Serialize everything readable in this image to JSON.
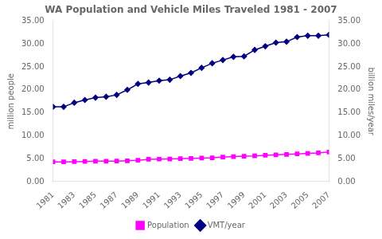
{
  "chart_data": {
    "type": "line",
    "title": "WA Population and Vehicle Miles Traveled 1981 - 2007",
    "x": [
      1981,
      1982,
      1983,
      1984,
      1985,
      1986,
      1987,
      1988,
      1989,
      1990,
      1991,
      1992,
      1993,
      1994,
      1995,
      1996,
      1997,
      1998,
      1999,
      2000,
      2001,
      2002,
      2003,
      2004,
      2005,
      2006,
      2007
    ],
    "series": [
      {
        "name": "Population",
        "color": "#FF00FF",
        "marker": "square",
        "values": [
          4.3,
          4.3,
          4.35,
          4.4,
          4.45,
          4.46,
          4.48,
          4.55,
          4.65,
          4.87,
          4.9,
          4.94,
          5.0,
          5.06,
          5.13,
          5.2,
          5.35,
          5.45,
          5.55,
          5.6,
          5.73,
          5.84,
          5.94,
          6.05,
          6.15,
          6.25,
          6.45
        ]
      },
      {
        "name": "VMT/year",
        "color": "#000080",
        "marker": "diamond",
        "axis": "y2",
        "values": [
          16.3,
          16.3,
          17.2,
          17.8,
          18.3,
          18.5,
          18.9,
          20.0,
          21.3,
          21.6,
          22.0,
          22.2,
          23.0,
          23.7,
          24.8,
          25.8,
          26.5,
          27.2,
          27.3,
          28.7,
          29.5,
          30.3,
          30.5,
          31.5,
          31.8,
          31.8,
          32.0
        ]
      }
    ],
    "ylabel": "million people",
    "y2label": "billion miles/year",
    "xlim": [
      1981,
      2007
    ],
    "xticks": [
      1981,
      1983,
      1985,
      1987,
      1989,
      1991,
      1993,
      1995,
      1997,
      1999,
      2001,
      2003,
      2005,
      2007
    ],
    "ylim": [
      0,
      35
    ],
    "yticks": [
      {
        "value": 0,
        "label": "0.00"
      },
      {
        "value": 5,
        "label": "5.00"
      },
      {
        "value": 10,
        "label": "10.00"
      },
      {
        "value": 15,
        "label": "15.00"
      },
      {
        "value": 20,
        "label": "20.00"
      },
      {
        "value": 25,
        "label": "25.00"
      },
      {
        "value": 30,
        "label": "30.00"
      },
      {
        "value": 35,
        "label": "35.00"
      }
    ],
    "y2lim": [
      0,
      35
    ],
    "y2ticks": [
      {
        "value": 0,
        "label": "0.00"
      },
      {
        "value": 5,
        "label": "5.00"
      },
      {
        "value": 10,
        "label": "10.00"
      },
      {
        "value": 15,
        "label": "15.00"
      },
      {
        "value": 20,
        "label": "20.00"
      },
      {
        "value": 25,
        "label": "25.00"
      },
      {
        "value": 30,
        "label": "30.00"
      },
      {
        "value": 35,
        "label": "35.00"
      }
    ],
    "grid": false,
    "legend": "bottom"
  }
}
